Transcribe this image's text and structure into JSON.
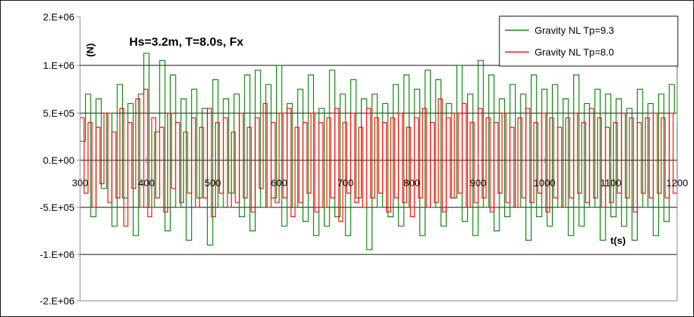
{
  "chart_data": {
    "type": "line",
    "title": "Hs=3.2m, T=8.0s, Fx",
    "xlabel": "t(s)",
    "ylabel": "(N)",
    "xlim": [
      300,
      1200
    ],
    "ylim": [
      -2000000,
      2000000
    ],
    "x_ticks": [
      300,
      400,
      500,
      600,
      700,
      800,
      900,
      1000,
      1100,
      1200
    ],
    "x_tick_labels": [
      "300",
      "400",
      "500",
      "600",
      "700",
      "800",
      "900",
      "1000",
      "1100",
      "1200"
    ],
    "y_ticks": [
      2000000,
      1000000,
      500000,
      0,
      -500000,
      -1000000,
      -2000000
    ],
    "y_tick_labels": [
      "2.E+06",
      "1.E+06",
      "5.E+05",
      "0.E+00",
      "-5.E+05",
      "-1.E+06",
      "-2.E+06"
    ],
    "grid": "horizontal",
    "legend_position": "top-right",
    "series": [
      {
        "name": "Gravity NL Tp=9.3",
        "color": "#008000",
        "x": [
          300,
          308,
          316,
          324,
          332,
          340,
          348,
          356,
          364,
          372,
          380,
          388,
          396,
          404,
          412,
          420,
          428,
          436,
          444,
          452,
          460,
          468,
          476,
          484,
          492,
          500,
          508,
          516,
          524,
          532,
          540,
          548,
          556,
          564,
          572,
          580,
          588,
          596,
          604,
          612,
          620,
          628,
          636,
          644,
          652,
          660,
          668,
          676,
          684,
          692,
          700,
          708,
          716,
          724,
          732,
          740,
          748,
          756,
          764,
          772,
          780,
          788,
          796,
          804,
          812,
          820,
          828,
          836,
          844,
          852,
          860,
          868,
          876,
          884,
          892,
          900,
          908,
          916,
          924,
          932,
          940,
          948,
          956,
          964,
          972,
          980,
          988,
          996,
          1004,
          1012,
          1020,
          1028,
          1036,
          1044,
          1052,
          1060,
          1068,
          1076,
          1084,
          1092,
          1100,
          1108,
          1116,
          1124,
          1132,
          1140,
          1148,
          1156,
          1164,
          1172,
          1180,
          1188,
          1196,
          1200
        ],
        "y": [
          200000,
          700000,
          -600000,
          650000,
          -300000,
          500000,
          -700000,
          800000,
          -400000,
          600000,
          -800000,
          700000,
          1250000,
          -500000,
          300000,
          1100000,
          -750000,
          900000,
          -500000,
          650000,
          -850000,
          750000,
          -400000,
          550000,
          -900000,
          850000,
          -500000,
          650000,
          -350000,
          700000,
          -600000,
          900000,
          -750000,
          950000,
          -500000,
          800000,
          -400000,
          1000000,
          -700000,
          600000,
          -500000,
          750000,
          -650000,
          900000,
          -800000,
          550000,
          -700000,
          950000,
          -600000,
          700000,
          -800000,
          850000,
          -400000,
          650000,
          -950000,
          700000,
          -500000,
          600000,
          -600000,
          800000,
          -700000,
          900000,
          -500000,
          750000,
          -800000,
          950000,
          -500000,
          850000,
          -700000,
          600000,
          -400000,
          1000000,
          -650000,
          700000,
          -800000,
          1100000,
          -500000,
          900000,
          -750000,
          650000,
          -600000,
          800000,
          -500000,
          700000,
          -850000,
          900000,
          -600000,
          750000,
          -700000,
          800000,
          -500000,
          650000,
          -800000,
          900000,
          -700000,
          600000,
          -500000,
          750000,
          -850000,
          700000,
          -600000,
          650000,
          -700000,
          550000,
          -850000,
          750000,
          -500000,
          600000,
          -800000,
          700000,
          -650000,
          800000,
          500000,
          1000000
        ]
      },
      {
        "name": "Gravity NL Tp=8.0",
        "color": "#ff0000",
        "x": [
          300,
          306,
          312,
          318,
          324,
          330,
          336,
          342,
          348,
          354,
          360,
          366,
          372,
          378,
          384,
          390,
          396,
          402,
          408,
          414,
          420,
          426,
          432,
          438,
          444,
          450,
          456,
          462,
          468,
          474,
          480,
          486,
          492,
          498,
          504,
          510,
          516,
          522,
          528,
          534,
          540,
          546,
          552,
          558,
          564,
          570,
          576,
          582,
          588,
          594,
          600,
          606,
          612,
          618,
          624,
          630,
          636,
          642,
          648,
          654,
          660,
          666,
          672,
          678,
          684,
          690,
          696,
          702,
          708,
          714,
          720,
          726,
          732,
          738,
          744,
          750,
          756,
          762,
          768,
          774,
          780,
          786,
          792,
          798,
          804,
          810,
          816,
          822,
          828,
          834,
          840,
          846,
          852,
          858,
          864,
          870,
          876,
          882,
          888,
          894,
          900,
          906,
          912,
          918,
          924,
          930,
          936,
          942,
          948,
          954,
          960,
          966,
          972,
          978,
          984,
          990,
          996,
          1002,
          1008,
          1014,
          1020,
          1026,
          1032,
          1038,
          1044,
          1050,
          1056,
          1062,
          1068,
          1074,
          1080,
          1086,
          1092,
          1098,
          1104,
          1110,
          1116,
          1122,
          1128,
          1134,
          1140,
          1146,
          1152,
          1158,
          1164,
          1170,
          1176,
          1182,
          1188,
          1194,
          1200
        ],
        "y": [
          450000,
          -350000,
          400000,
          -500000,
          350000,
          -250000,
          500000,
          -450000,
          300000,
          -400000,
          550000,
          -700000,
          400000,
          -300000,
          650000,
          -500000,
          750000,
          -600000,
          450000,
          -400000,
          350000,
          -550000,
          500000,
          -300000,
          400000,
          -450000,
          300000,
          -350000,
          450000,
          -500000,
          350000,
          -400000,
          550000,
          -600000,
          400000,
          -350000,
          450000,
          -500000,
          300000,
          -450000,
          500000,
          -400000,
          350000,
          -550000,
          450000,
          -300000,
          600000,
          -500000,
          400000,
          -450000,
          500000,
          -400000,
          550000,
          -600000,
          350000,
          -450000,
          400000,
          -350000,
          500000,
          -550000,
          400000,
          -500000,
          450000,
          -400000,
          550000,
          -650000,
          400000,
          -350000,
          500000,
          -450000,
          350000,
          -500000,
          550000,
          -400000,
          450000,
          -350000,
          400000,
          -550000,
          450000,
          -400000,
          500000,
          -450000,
          350000,
          -600000,
          450000,
          -400000,
          550000,
          -500000,
          400000,
          -450000,
          650000,
          -550000,
          450000,
          -400000,
          500000,
          -350000,
          600000,
          -500000,
          400000,
          -450000,
          550000,
          -400000,
          450000,
          -550000,
          400000,
          -350000,
          500000,
          -450000,
          350000,
          -500000,
          450000,
          -400000,
          550000,
          -450000,
          400000,
          -350000,
          500000,
          -550000,
          450000,
          -400000,
          350000,
          -500000,
          450000,
          -400000,
          500000,
          -350000,
          400000,
          -450000,
          550000,
          -400000,
          450000,
          -500000,
          350000,
          -450000,
          400000,
          -350000,
          500000,
          -400000,
          450000,
          -550000,
          400000,
          -350000,
          450000,
          -400000,
          500000,
          -350000,
          450000,
          -400000,
          500000,
          -350000,
          400000
        ]
      }
    ]
  }
}
